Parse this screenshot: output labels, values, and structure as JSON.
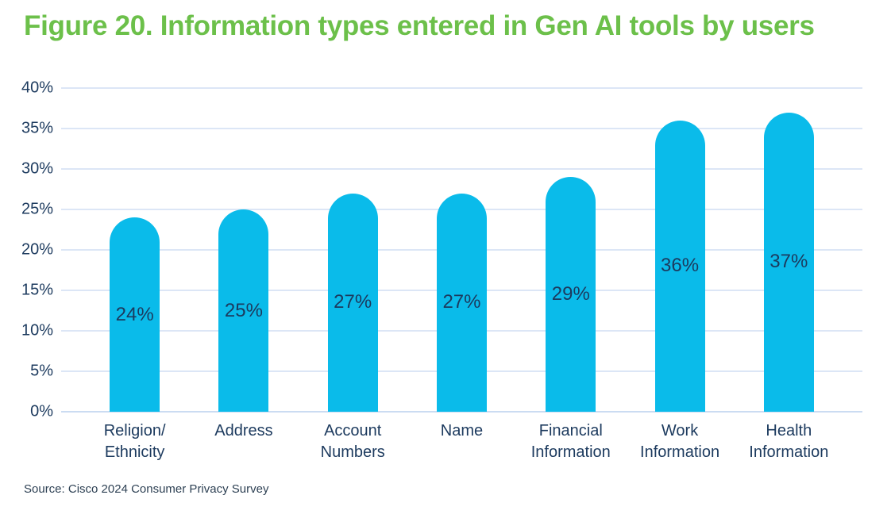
{
  "figure": {
    "title": "Figure 20. Information types entered in Gen AI tools by users",
    "source": "Source: Cisco 2024 Consumer Privacy Survey"
  },
  "colors": {
    "title_green": "#6cc04a",
    "bar_cyan": "#0abbea",
    "axis_text_navy": "#1c3a5e",
    "gridline_light_blue": "#dce6f6",
    "baseline_light_blue": "#cbdcf2",
    "source_text": "#2e4154",
    "background": "#ffffff"
  },
  "chart_data": {
    "type": "bar",
    "title": "Figure 20. Information types entered in Gen AI tools by users",
    "categories": [
      "Religion/Ethnicity",
      "Address",
      "Account Numbers",
      "Name",
      "Financial Information",
      "Work Information",
      "Health Information"
    ],
    "category_label_lines": [
      [
        "Religion/",
        "Ethnicity"
      ],
      [
        "Address"
      ],
      [
        "Account",
        "Numbers"
      ],
      [
        "Name"
      ],
      [
        "Financial",
        "Information"
      ],
      [
        "Work",
        "Information"
      ],
      [
        "Health",
        "Information"
      ]
    ],
    "values": [
      24,
      25,
      27,
      27,
      29,
      36,
      37
    ],
    "value_labels": [
      "24%",
      "25%",
      "27%",
      "27%",
      "29%",
      "36%",
      "37%"
    ],
    "xlabel": "",
    "ylabel": "",
    "ylim": [
      0,
      40
    ],
    "ytick_step": 5,
    "ytick_labels": [
      "0%",
      "5%",
      "10%",
      "15%",
      "20%",
      "25%",
      "30%",
      "35%",
      "40%"
    ],
    "grid": "horizontal",
    "legend": "none",
    "bar_style": "rounded-top",
    "value_label_position": "centered-inside-bar",
    "footnote": "Source: Cisco 2024 Consumer Privacy Survey"
  }
}
